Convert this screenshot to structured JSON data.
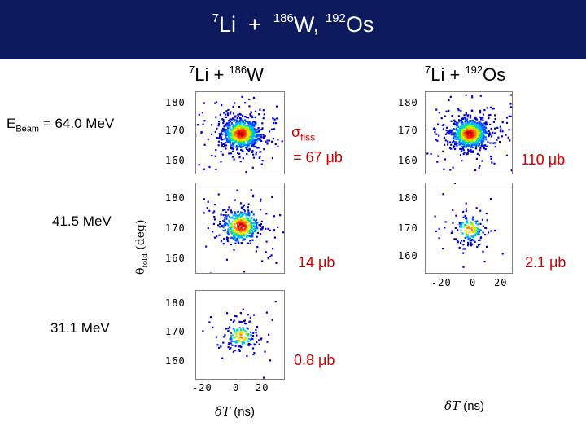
{
  "header": {
    "title_parts": {
      "a_mass": "7",
      "a_el": "Li",
      "plus": "+",
      "b_mass": "186",
      "b_el": "W,",
      "c_mass": "192",
      "c_el": "Os"
    }
  },
  "columns": [
    {
      "mass": "7",
      "el": "Li + ",
      "tmass": "186",
      "tel": "W"
    },
    {
      "mass": "7",
      "el": "Li + ",
      "tmass": "192",
      "tel": "Os"
    }
  ],
  "rows": {
    "ebeam_main": "E",
    "ebeam_sub": "Beam",
    "ebeam_value": " = 64.0 MeV",
    "second": "41.5 MeV",
    "third": "31.1 MeV"
  },
  "cross_sections": {
    "sigma": "σ",
    "sigma_sub": "fiss",
    "w_64": "= 67 μb",
    "os_64": "110 μb",
    "w_41": "14 μb",
    "os_41": "2.1 μb",
    "w_31": "0.8 μb"
  },
  "axes": {
    "y_label_theta": "θ",
    "y_label_sub": "fold",
    "y_label_unit": " (deg)",
    "y_ticks": [
      "180",
      "170",
      "160"
    ],
    "x_ticks": [
      "-20",
      "0",
      "20"
    ],
    "x_label_symbol": "δT",
    "x_label_unit": " (ns)"
  },
  "chart_data": [
    {
      "type": "scatter",
      "panel": "W-64.0MeV",
      "xlabel": "δT (ns)",
      "ylabel": "θfold (deg)",
      "ylim": [
        155,
        185
      ],
      "xlim": [
        -30,
        30
      ],
      "cluster_center": [
        0,
        170
      ],
      "density": "high"
    },
    {
      "type": "scatter",
      "panel": "Os-64.0MeV",
      "xlabel": "δT (ns)",
      "ylabel": "θfold (deg)",
      "ylim": [
        155,
        185
      ],
      "xlim": [
        -30,
        30
      ],
      "cluster_center": [
        0,
        170
      ],
      "density": "high"
    },
    {
      "type": "scatter",
      "panel": "W-41.5MeV",
      "xlabel": "δT (ns)",
      "ylabel": "θfold (deg)",
      "ylim": [
        155,
        185
      ],
      "xlim": [
        -30,
        30
      ],
      "cluster_center": [
        0,
        171
      ],
      "density": "medium"
    },
    {
      "type": "scatter",
      "panel": "Os-41.5MeV",
      "xlabel": "δT (ns)",
      "ylabel": "θfold (deg)",
      "ylim": [
        155,
        185
      ],
      "xlim": [
        -30,
        30
      ],
      "cluster_center": [
        0,
        170
      ],
      "density": "low"
    },
    {
      "type": "scatter",
      "panel": "W-31.1MeV",
      "xlabel": "δT (ns)",
      "ylabel": "θfold (deg)",
      "ylim": [
        155,
        185
      ],
      "xlim": [
        -30,
        30
      ],
      "cluster_center": [
        0,
        170
      ],
      "density": "low"
    }
  ],
  "colors": {
    "header_bg": "#0d1b5e",
    "accent_red": "#cc0000"
  }
}
